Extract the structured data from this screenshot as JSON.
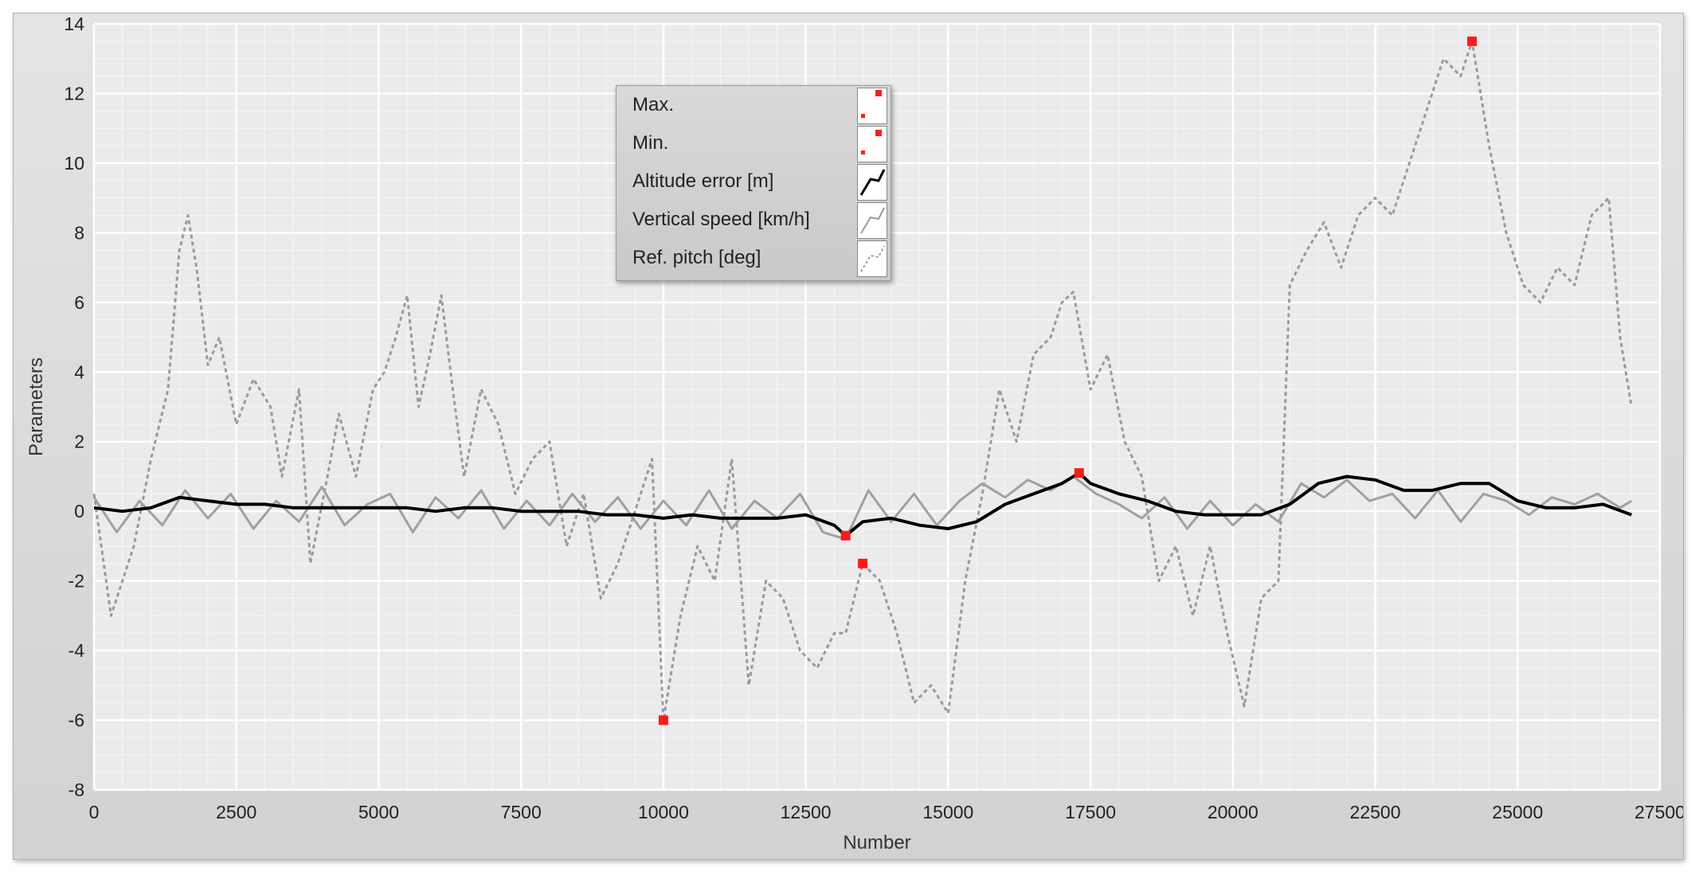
{
  "chart_data": {
    "type": "line",
    "title": "",
    "xlabel": "Number",
    "ylabel": "Parameters",
    "xlim": [
      0,
      27500
    ],
    "ylim": [
      -8,
      14
    ],
    "x_ticks": [
      "0",
      "2500",
      "5000",
      "7500",
      "10000",
      "12500",
      "15000",
      "17500",
      "20000",
      "22500",
      "25000",
      "27500"
    ],
    "y_ticks": [
      "14",
      "12",
      "10",
      "8",
      "6",
      "4",
      "2",
      "0",
      "-2",
      "-4",
      "-6",
      "-8"
    ],
    "grid": true,
    "legend_position": "top-center",
    "legend": [
      "Max.",
      "Min.",
      "Altitude error [m]",
      "Vertical speed [km/h]",
      "Ref. pitch [deg]"
    ],
    "series": [
      {
        "name": "Ref. pitch [deg]",
        "style": "dashed",
        "color": "#9a9a9a",
        "x": [
          0,
          300,
          700,
          1000,
          1300,
          1500,
          1650,
          1800,
          2000,
          2200,
          2500,
          2800,
          3100,
          3300,
          3600,
          3800,
          4100,
          4300,
          4600,
          4900,
          5100,
          5300,
          5500,
          5700,
          5900,
          6100,
          6300,
          6500,
          6800,
          7100,
          7400,
          7700,
          8000,
          8300,
          8600,
          8900,
          9200,
          9500,
          9800,
          10000,
          10300,
          10600,
          10900,
          11200,
          11500,
          11800,
          12100,
          12400,
          12700,
          13000,
          13200,
          13500,
          13800,
          14100,
          14400,
          14700,
          15000,
          15300,
          15600,
          15900,
          16200,
          16500,
          16800,
          17000,
          17200,
          17500,
          17800,
          18100,
          18400,
          18700,
          19000,
          19300,
          19600,
          19900,
          20200,
          20500,
          20800,
          21000,
          21300,
          21600,
          21900,
          22200,
          22500,
          22800,
          23100,
          23400,
          23700,
          24000,
          24200,
          24500,
          24800,
          25100,
          25400,
          25700,
          26000,
          26300,
          26600,
          26800,
          27000
        ],
        "values": [
          0.5,
          -3.0,
          -1.0,
          1.5,
          3.5,
          7.5,
          8.5,
          7.0,
          4.2,
          5.0,
          2.5,
          3.8,
          3.0,
          1.0,
          3.5,
          -1.5,
          1.0,
          2.8,
          1.0,
          3.5,
          4.0,
          5.0,
          6.2,
          3.0,
          4.5,
          6.2,
          3.5,
          1.0,
          3.5,
          2.5,
          0.5,
          1.5,
          2.0,
          -1.0,
          0.5,
          -2.5,
          -1.5,
          0.0,
          1.5,
          -6.0,
          -3.0,
          -1.0,
          -2.0,
          1.5,
          -5.0,
          -2.0,
          -2.5,
          -4.0,
          -4.5,
          -3.5,
          -3.5,
          -1.5,
          -2.0,
          -3.5,
          -5.5,
          -5.0,
          -5.8,
          -2.0,
          0.5,
          3.5,
          2.0,
          4.5,
          5.0,
          6.0,
          6.3,
          3.5,
          4.5,
          2.0,
          1.0,
          -2.0,
          -1.0,
          -3.0,
          -1.0,
          -3.5,
          -5.6,
          -2.5,
          -2.0,
          6.5,
          7.5,
          8.3,
          7.0,
          8.5,
          9.0,
          8.5,
          10.0,
          11.5,
          13.0,
          12.5,
          13.5,
          10.5,
          8.0,
          6.5,
          6.0,
          7.0,
          6.5,
          8.5,
          9.0,
          5.0,
          3.0
        ]
      },
      {
        "name": "Vertical speed [km/h]",
        "style": "solid",
        "color": "#a0a0a0",
        "x": [
          0,
          400,
          800,
          1200,
          1600,
          2000,
          2400,
          2800,
          3200,
          3600,
          4000,
          4400,
          4800,
          5200,
          5600,
          6000,
          6400,
          6800,
          7200,
          7600,
          8000,
          8400,
          8800,
          9200,
          9600,
          10000,
          10400,
          10800,
          11200,
          11600,
          12000,
          12400,
          12800,
          13200,
          13600,
          14000,
          14400,
          14800,
          15200,
          15600,
          16000,
          16400,
          16800,
          17200,
          17600,
          18000,
          18400,
          18800,
          19200,
          19600,
          20000,
          20400,
          20800,
          21200,
          21600,
          22000,
          22400,
          22800,
          23200,
          23600,
          24000,
          24400,
          24800,
          25200,
          25600,
          26000,
          26400,
          26800,
          27000
        ],
        "values": [
          0.4,
          -0.6,
          0.3,
          -0.4,
          0.6,
          -0.2,
          0.5,
          -0.5,
          0.3,
          -0.3,
          0.7,
          -0.4,
          0.2,
          0.5,
          -0.6,
          0.4,
          -0.2,
          0.6,
          -0.5,
          0.3,
          -0.4,
          0.5,
          -0.3,
          0.4,
          -0.5,
          0.3,
          -0.4,
          0.6,
          -0.5,
          0.3,
          -0.2,
          0.5,
          -0.6,
          -0.8,
          0.6,
          -0.3,
          0.5,
          -0.4,
          0.3,
          0.8,
          0.4,
          0.9,
          0.6,
          1.0,
          0.5,
          0.2,
          -0.2,
          0.4,
          -0.5,
          0.3,
          -0.4,
          0.2,
          -0.3,
          0.8,
          0.4,
          0.9,
          0.3,
          0.5,
          -0.2,
          0.6,
          -0.3,
          0.5,
          0.3,
          -0.1,
          0.4,
          0.2,
          0.5,
          0.1,
          0.3
        ]
      },
      {
        "name": "Altitude error [m]",
        "style": "solid",
        "color": "#000000",
        "x": [
          0,
          500,
          1000,
          1500,
          2000,
          2500,
          3000,
          3500,
          4000,
          4500,
          5000,
          5500,
          6000,
          6500,
          7000,
          7500,
          8000,
          8500,
          9000,
          9500,
          10000,
          10500,
          11000,
          11500,
          12000,
          12500,
          13000,
          13200,
          13500,
          14000,
          14500,
          15000,
          15500,
          16000,
          16500,
          17000,
          17300,
          17500,
          18000,
          18500,
          19000,
          19500,
          20000,
          20500,
          21000,
          21500,
          22000,
          22500,
          23000,
          23500,
          24000,
          24500,
          25000,
          25500,
          26000,
          26500,
          27000
        ],
        "values": [
          0.1,
          0.0,
          0.1,
          0.4,
          0.3,
          0.2,
          0.2,
          0.1,
          0.1,
          0.1,
          0.1,
          0.1,
          0.0,
          0.1,
          0.1,
          0.0,
          0.0,
          0.0,
          -0.1,
          -0.1,
          -0.2,
          -0.1,
          -0.2,
          -0.2,
          -0.2,
          -0.1,
          -0.4,
          -0.7,
          -0.3,
          -0.2,
          -0.4,
          -0.5,
          -0.3,
          0.2,
          0.5,
          0.8,
          1.1,
          0.8,
          0.5,
          0.3,
          0.0,
          -0.1,
          -0.1,
          -0.1,
          0.2,
          0.8,
          1.0,
          0.9,
          0.6,
          0.6,
          0.8,
          0.8,
          0.3,
          0.1,
          0.1,
          0.2,
          -0.1
        ]
      }
    ],
    "markers": [
      {
        "name": "Max.",
        "x": 24200,
        "y": 13.5
      },
      {
        "name": "Max.",
        "x": 17300,
        "y": 1.1
      },
      {
        "name": "Min.",
        "x": 10000,
        "y": -6.0
      },
      {
        "name": "Min.",
        "x": 13200,
        "y": -0.7
      },
      {
        "name": "Min.",
        "x": 13500,
        "y": -1.5
      }
    ],
    "colors": {
      "marker": "#ff1a1a",
      "grid": "#ffffff",
      "plot_bg": "#ebebeb"
    }
  }
}
